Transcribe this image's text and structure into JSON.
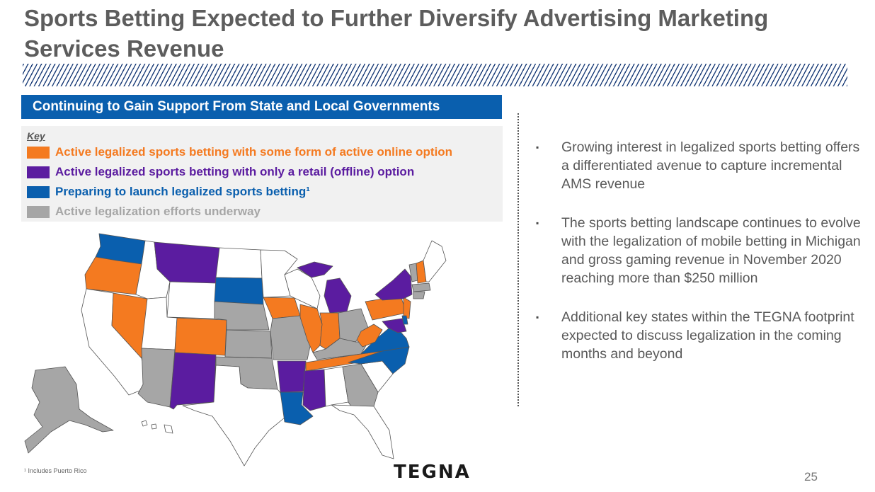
{
  "slide": {
    "title": "Sports Betting Expected to Further Diversify Advertising Marketing Services Revenue",
    "banner": "Continuing to Gain Support From State and Local Governments",
    "key": {
      "title": "Key",
      "items": [
        {
          "label": "Active legalized sports betting with some form of active online option",
          "color": "#f47a20"
        },
        {
          "label": "Active legalized sports betting with only a retail (offline) option",
          "color": "#5b1ca0"
        },
        {
          "label": "Preparing to launch legalized sports betting¹",
          "color": "#0a5fae"
        },
        {
          "label": "Active legalization efforts underway",
          "color": "#a6a6a6"
        }
      ]
    },
    "bullets": [
      "Growing interest in legalized sports betting offers a differentiated avenue to capture incremental AMS revenue",
      "The sports betting landscape continues to evolve with the legalization of mobile betting in Michigan and gross gaming revenue in November 2020 reaching more than $250 million",
      "Additional key states within the TEGNA footprint expected to discuss legalization in the coming months and beyond"
    ],
    "bullet_mark": "▪",
    "footnote": "¹ Includes Puerto Rico",
    "logo": "TEGNA",
    "page_number": "25"
  }
}
